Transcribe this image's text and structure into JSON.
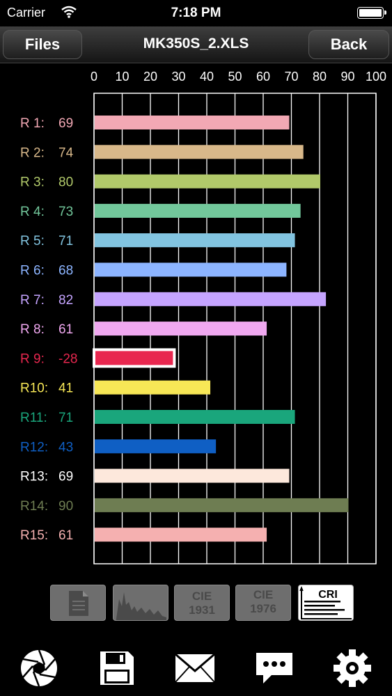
{
  "status": {
    "carrier": "Carrier",
    "time": "7:18 PM"
  },
  "nav": {
    "left_button": "Files",
    "title": "MK350S_2.XLS",
    "right_button": "Back"
  },
  "chart_data": {
    "type": "bar",
    "orientation": "horizontal",
    "xlim": [
      0,
      100
    ],
    "ticks": [
      "0",
      "10",
      "20",
      "30",
      "40",
      "50",
      "60",
      "70",
      "80",
      "90",
      "100"
    ],
    "grid": true,
    "categories": [
      "R 1:",
      "R 2:",
      "R 3:",
      "R 4:",
      "R 5:",
      "R 6:",
      "R 7:",
      "R 8:",
      "R 9:",
      "R10:",
      "R11:",
      "R12:",
      "R13:",
      "R14:",
      "R15:"
    ],
    "value_labels": [
      "69",
      "74",
      "80",
      "73",
      "71",
      "68",
      "82",
      "61",
      "-28",
      "41",
      "71",
      "43",
      "69",
      "90",
      "61"
    ],
    "values": [
      69,
      74,
      80,
      73,
      71,
      68,
      82,
      61,
      -28,
      41,
      71,
      43,
      69,
      90,
      61
    ],
    "colors": [
      "#f2a8b4",
      "#d8b88a",
      "#b1c96a",
      "#72c79b",
      "#82c4e0",
      "#8cb4ff",
      "#c5a4ff",
      "#f0a8f0",
      "#e8274f",
      "#f7e756",
      "#1aa67c",
      "#0f5fc4",
      "#fde8dc",
      "#6e7d52",
      "#f5b0b0"
    ],
    "label_colors": [
      "#f2a8b4",
      "#d8b88a",
      "#b1c96a",
      "#72c79b",
      "#82c4e0",
      "#8cb4ff",
      "#c5a4ff",
      "#f0a8f0",
      "#e8274f",
      "#f7e756",
      "#1aa67c",
      "#0f5fc4",
      "#ffffff",
      "#6e7d52",
      "#f5b0b0"
    ]
  },
  "modes": [
    {
      "name": "document-mode",
      "label": "",
      "active": false
    },
    {
      "name": "spectrum-mode",
      "label": "",
      "active": false
    },
    {
      "name": "cie1931-mode",
      "label": "CIE 1931",
      "active": false
    },
    {
      "name": "cie1976-mode",
      "label": "CIE 1976",
      "active": false
    },
    {
      "name": "cri-mode",
      "label": "CRI",
      "active": true
    }
  ],
  "toolbar": [
    "camera-aperture-icon",
    "save-icon",
    "mail-icon",
    "message-icon",
    "gear-icon"
  ]
}
